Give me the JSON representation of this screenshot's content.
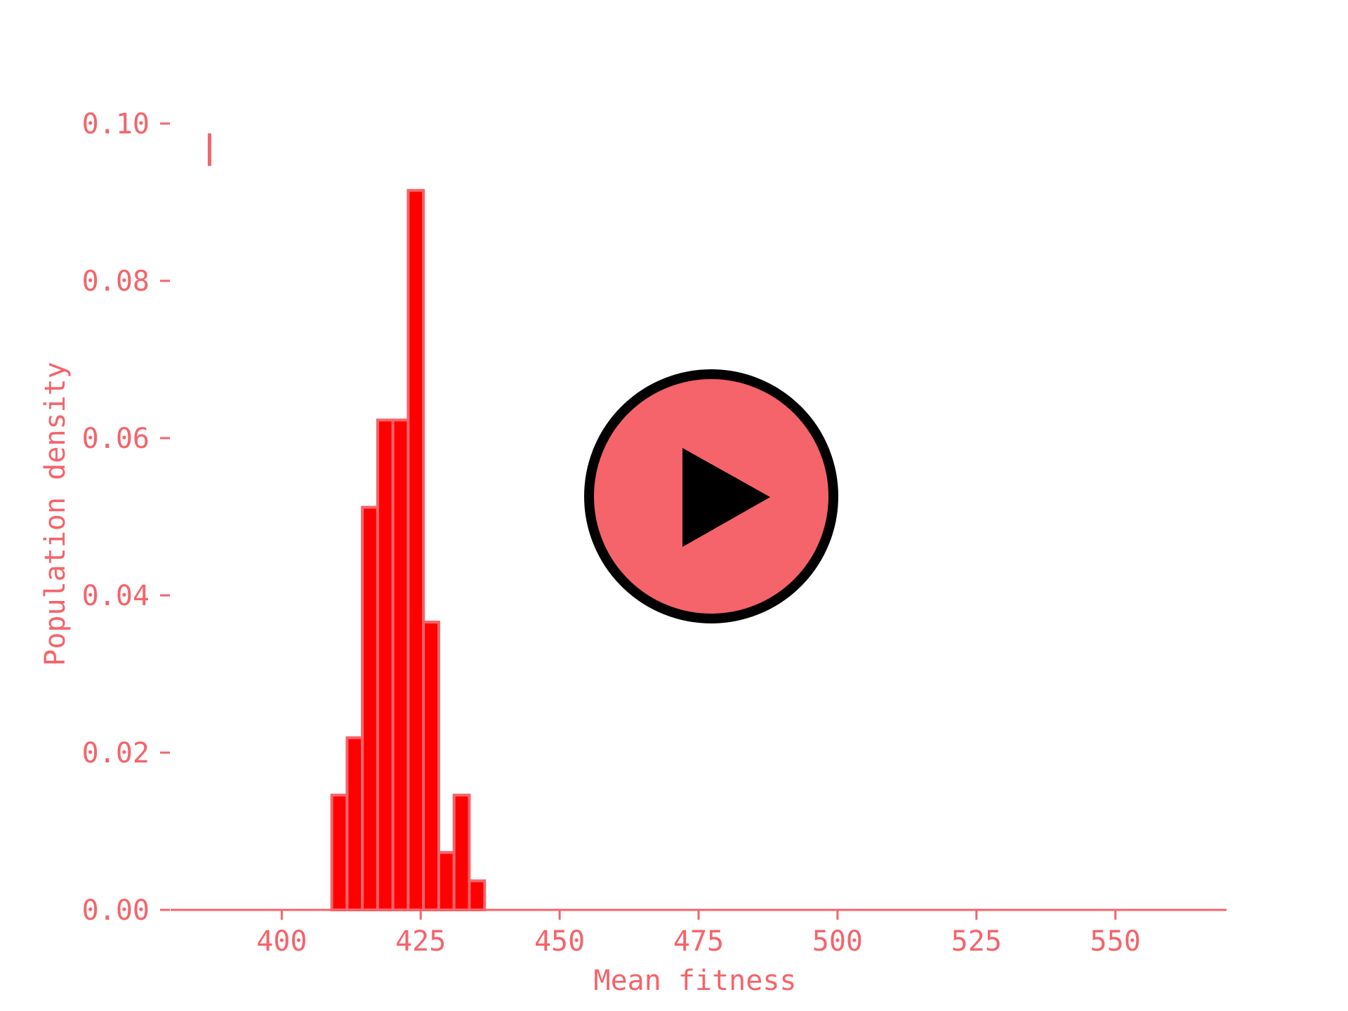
{
  "colors": {
    "accent": "#f4646a",
    "bar_fill": "#ff0000",
    "bar_edge": "#f4646a",
    "play_fill": "#f4646a",
    "play_outline": "#000000",
    "play_triangle": "#000000",
    "background": "#ffffff"
  },
  "play_button": {
    "icon": "play-icon"
  },
  "chart_data": {
    "type": "bar",
    "title": "",
    "xlabel": "Mean fitness",
    "ylabel": "Population density",
    "xlim": [
      380,
      570
    ],
    "ylim": [
      0,
      0.1
    ],
    "grid": false,
    "xticks": [
      400,
      425,
      450,
      475,
      500,
      525,
      550
    ],
    "xtick_labels": [
      "400",
      "425",
      "450",
      "475",
      "500",
      "525",
      "550"
    ],
    "yticks": [
      0,
      0.02,
      0.04,
      0.06,
      0.08,
      0.1
    ],
    "ytick_labels": [
      "0.00",
      "0.02",
      "0.04",
      "0.06",
      "0.08",
      "0.10"
    ],
    "bin_width": 2.75,
    "bins": [
      {
        "x0": 409.0,
        "x1": 411.75,
        "value": 0.0146
      },
      {
        "x0": 411.75,
        "x1": 414.5,
        "value": 0.0219
      },
      {
        "x0": 414.5,
        "x1": 417.25,
        "value": 0.0512
      },
      {
        "x0": 417.25,
        "x1": 420.0,
        "value": 0.0623
      },
      {
        "x0": 420.0,
        "x1": 422.75,
        "value": 0.0623
      },
      {
        "x0": 422.75,
        "x1": 425.5,
        "value": 0.0915
      },
      {
        "x0": 425.5,
        "x1": 428.25,
        "value": 0.0366
      },
      {
        "x0": 428.25,
        "x1": 431.0,
        "value": 0.0073
      },
      {
        "x0": 431.0,
        "x1": 433.75,
        "value": 0.0146
      },
      {
        "x0": 433.75,
        "x1": 436.5,
        "value": 0.0037
      }
    ],
    "marker": {
      "x": 387,
      "y_low": 0.0955,
      "y_high": 0.1
    }
  }
}
